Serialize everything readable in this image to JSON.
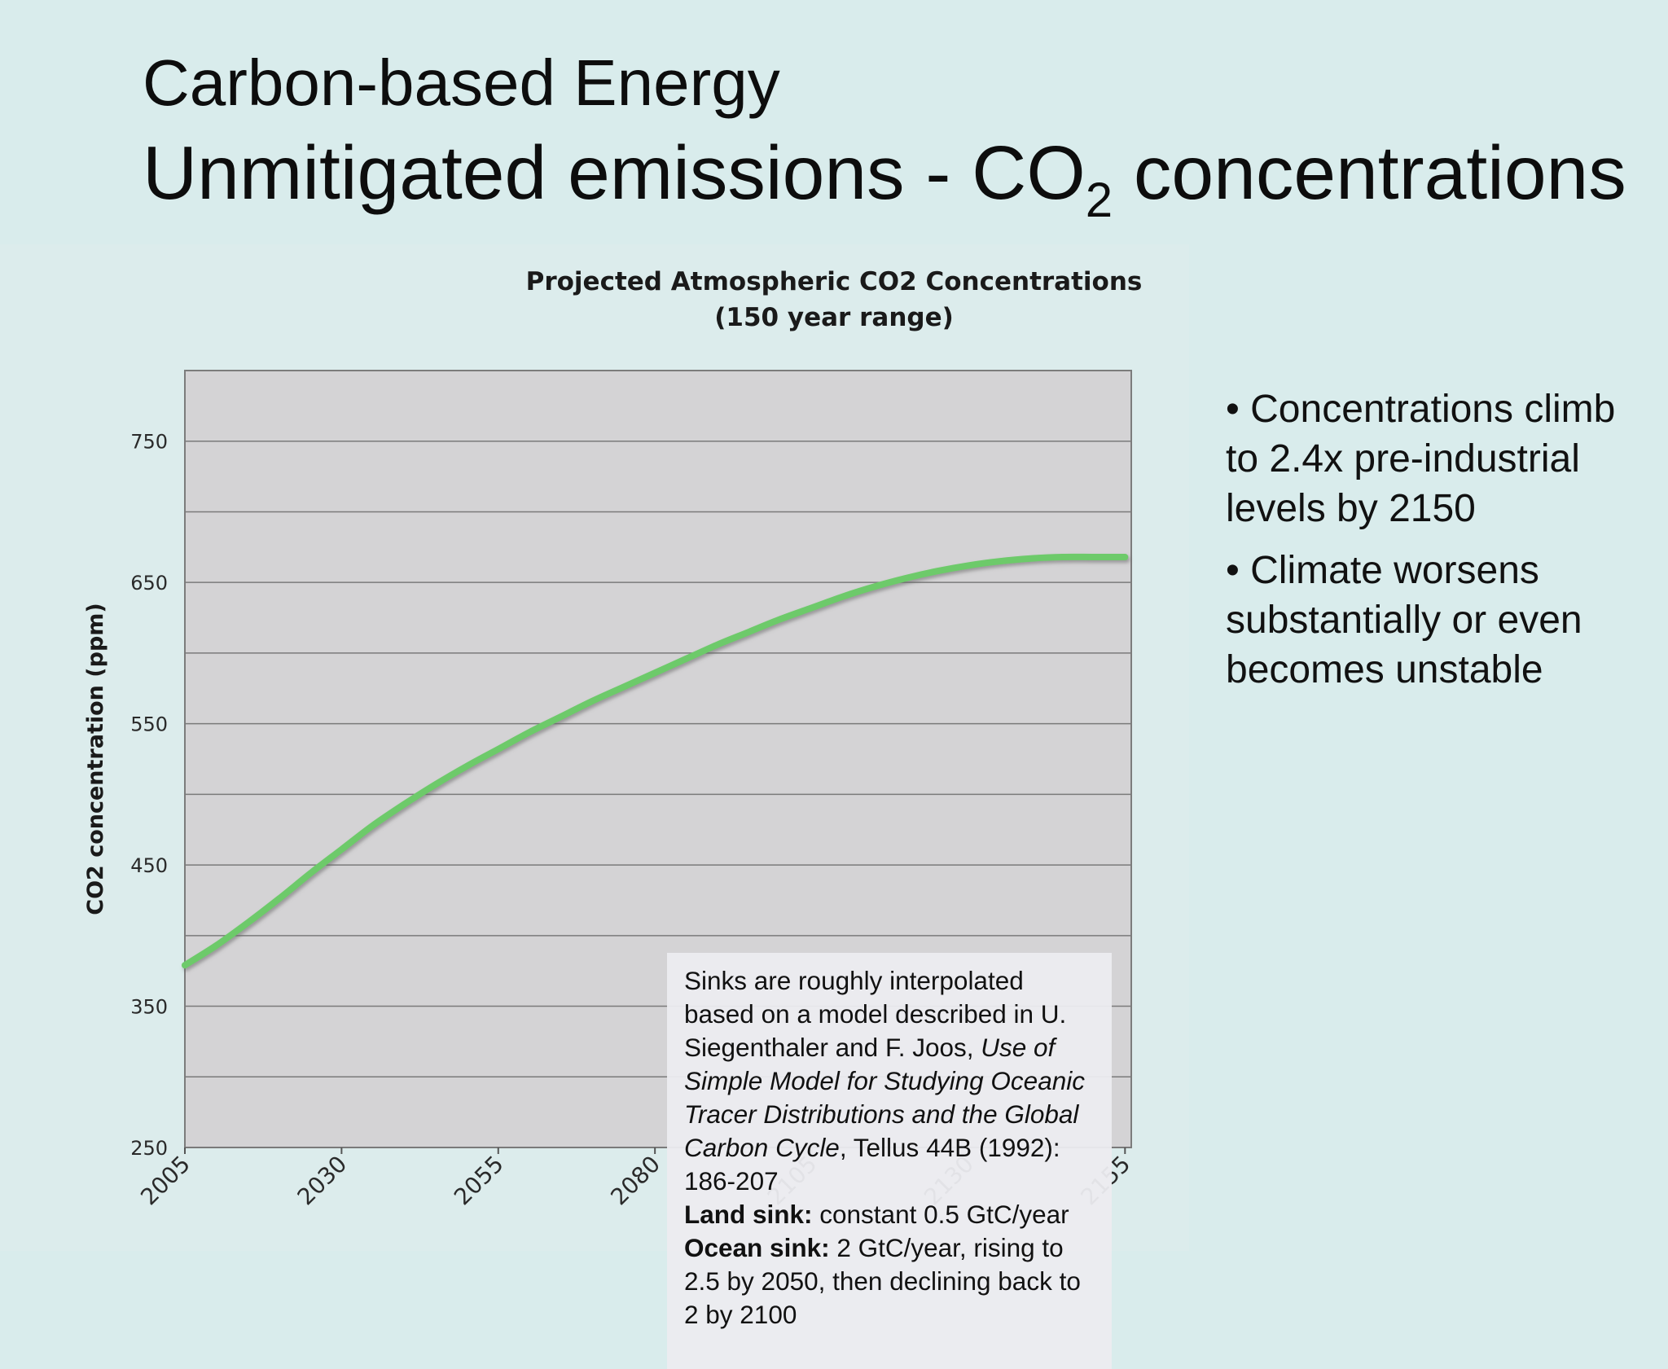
{
  "slide": {
    "title_line1": "Carbon-based Energy",
    "title_line2_pre": "Unmitigated emissions - CO",
    "title_line2_sub": "2",
    "title_line2_post": " concentrations"
  },
  "chart_data": {
    "type": "line",
    "title": "Projected Atmospheric CO2 Concentrations",
    "subtitle": "(150 year range)",
    "xlabel": "",
    "ylabel": "CO2 concentration (ppm)",
    "xlim": [
      2005,
      2156
    ],
    "ylim": [
      250,
      800
    ],
    "x_ticks": [
      "2005",
      "2030",
      "2055",
      "2080",
      "2105",
      "2130",
      "2155"
    ],
    "y_ticks": [
      "250",
      "350",
      "450",
      "550",
      "650",
      "750"
    ],
    "gridlines": [
      250,
      300,
      350,
      400,
      450,
      500,
      550,
      600,
      650,
      700,
      750
    ],
    "grid": true,
    "legend": "none",
    "series": [
      {
        "color": "#6dca6a",
        "x": [
          2005,
          2010,
          2015,
          2020,
          2025,
          2030,
          2035,
          2040,
          2045,
          2050,
          2055,
          2060,
          2065,
          2070,
          2075,
          2080,
          2085,
          2090,
          2095,
          2100,
          2105,
          2110,
          2115,
          2120,
          2125,
          2130,
          2135,
          2140,
          2145,
          2150,
          2155
        ],
        "y": [
          379,
          393,
          409,
          426,
          444,
          461,
          478,
          493,
          507,
          520,
          532,
          544,
          555,
          566,
          576,
          586,
          596,
          606,
          615,
          624,
          632,
          640,
          647,
          653,
          658,
          662,
          665,
          667,
          668,
          668,
          668
        ]
      }
    ]
  },
  "annotation": {
    "line1": "Sinks are roughly interpolated based on a model described in U. Siegenthaler and F. Joos, ",
    "italic": "Use of Simple Model for Studying Oceanic Tracer Distributions and the Global Carbon Cycle",
    "line2": ", Tellus 44B (1992): 186-207",
    "land_label": "Land sink:",
    "land_text": " constant 0.5 GtC/year",
    "ocean_label": "Ocean sink:",
    "ocean_text": " 2 GtC/year, rising to 2.5 by 2050, then declining back to 2 by 2100"
  },
  "bullets": [
    "• Concentrations climb to 2.4x pre-industrial levels by 2150",
    "• Climate worsens substantially or even becomes unstable"
  ],
  "colors": {
    "background": "#d9ecec",
    "plot_background": "#d4d3d5",
    "line": "#6dca6a",
    "grid": "#7a7a7a"
  }
}
